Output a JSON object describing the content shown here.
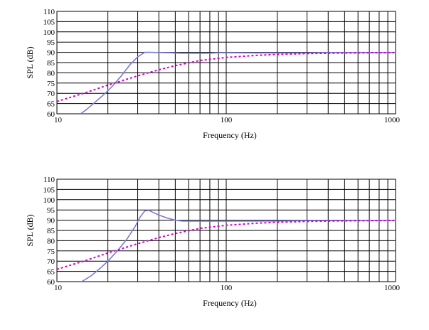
{
  "chart_data": [
    {
      "type": "line",
      "xscale": "log",
      "xlim": [
        10,
        1000
      ],
      "ylim": [
        60,
        110
      ],
      "grid": true,
      "legend": "none",
      "xlabel": "Frequency (Hz)",
      "ylabel": "SPL (dB)",
      "xticks": [
        "10",
        "100",
        "1000"
      ],
      "yticks": [
        "60",
        "65",
        "70",
        "75",
        "80",
        "85",
        "90",
        "95",
        "100",
        "105",
        "110"
      ],
      "series": [
        {
          "style": "solid",
          "color": "#7b7bd6",
          "x": [
            13.8,
            15,
            17,
            19,
            21,
            24,
            27,
            30,
            33,
            36,
            40,
            45,
            55,
            70,
            80,
            90,
            100,
            150,
            200,
            300,
            400,
            600,
            800,
            1000
          ],
          "y": [
            60,
            62.2,
            66,
            69.5,
            73,
            78.5,
            84,
            87.8,
            90,
            90,
            89.9,
            89.8,
            89.6,
            89.5,
            89.6,
            89.8,
            89.8,
            89.7,
            89.7,
            89.7,
            89.9,
            89.9,
            89.9,
            89.9
          ]
        },
        {
          "style": "dotted",
          "color": "#d400d4",
          "x": [
            10,
            15,
            20,
            25,
            30,
            40,
            50,
            70,
            100,
            150,
            200,
            300,
            500,
            700,
            1000
          ],
          "y": [
            66,
            70.5,
            74,
            76.5,
            78.5,
            81.5,
            83.5,
            86,
            87.5,
            88.5,
            89,
            89.4,
            89.7,
            89.8,
            89.9
          ]
        }
      ]
    },
    {
      "type": "line",
      "xscale": "log",
      "xlim": [
        10,
        1000
      ],
      "ylim": [
        60,
        110
      ],
      "grid": true,
      "legend": "none",
      "xlabel": "Frequency (Hz)",
      "ylabel": "SPL (dB)",
      "xticks": [
        "10",
        "100",
        "1000"
      ],
      "yticks": [
        "60",
        "65",
        "70",
        "75",
        "80",
        "85",
        "90",
        "95",
        "100",
        "105",
        "110"
      ],
      "series": [
        {
          "style": "solid",
          "color": "#7b7bd6",
          "x": [
            14,
            16,
            18,
            20,
            23,
            26,
            29,
            31,
            33,
            35,
            37,
            40,
            45,
            50,
            55,
            60,
            80,
            100,
            200,
            300,
            400,
            600,
            1000
          ],
          "y": [
            60,
            63,
            66.5,
            70,
            75.5,
            81,
            87,
            91.5,
            94.5,
            94.8,
            93.8,
            92.5,
            91,
            90,
            89.6,
            89.5,
            89.5,
            89.5,
            89.6,
            89.8,
            89.8,
            89.9,
            89.9
          ]
        },
        {
          "style": "dotted",
          "color": "#d400d4",
          "x": [
            10,
            15,
            20,
            25,
            30,
            40,
            50,
            70,
            100,
            150,
            200,
            300,
            500,
            700,
            1000
          ],
          "y": [
            66,
            70.5,
            74,
            76.5,
            78.5,
            81.5,
            83.5,
            86,
            87.5,
            88.5,
            89,
            89.4,
            89.7,
            89.8,
            89.9
          ]
        }
      ]
    }
  ]
}
